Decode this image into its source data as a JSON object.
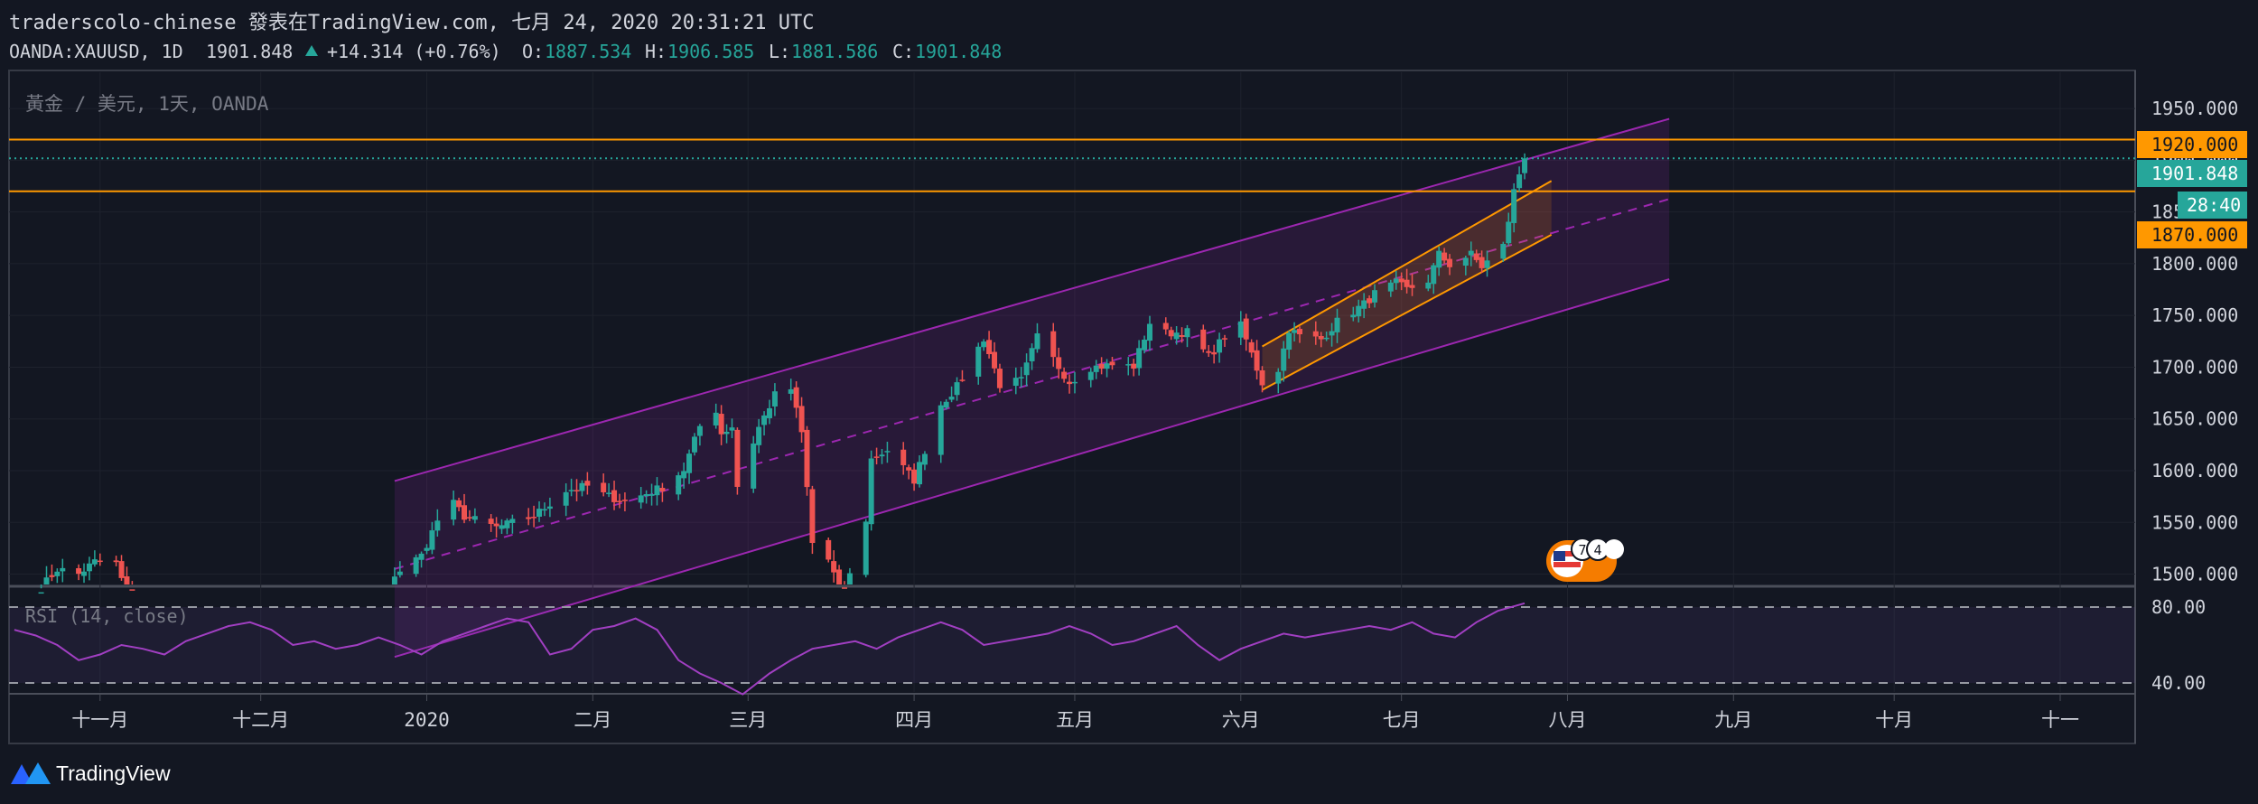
{
  "header": {
    "title": "traderscolo-chinese 發表在TradingView.com, 七月 24, 2020 20:31:21 UTC",
    "symbol": "OANDA:XAUUSD, 1D",
    "last": "1901.848",
    "change": "+14.314 (+0.76%)",
    "o_label": "O:",
    "o": "1887.534",
    "h_label": "H:",
    "h": "1906.585",
    "l_label": "L:",
    "l": "1881.586",
    "c_label": "C:",
    "c": "1901.848"
  },
  "pane_label": "黃金 / 美元, 1天, OANDA",
  "rsi_label": "RSI (14, close)",
  "price_tags": {
    "upper_level": "1920.000",
    "last_price": "1901.848",
    "countdown": "28:40",
    "lower_level": "1870.000"
  },
  "price_axis_ticks": [
    "1950.000",
    "1900.000",
    "1850.000",
    "1800.000",
    "1750.000",
    "1700.000",
    "1650.000",
    "1600.000",
    "1550.000",
    "1500.000"
  ],
  "rsi_axis_ticks": [
    "80.00",
    "40.00"
  ],
  "time_axis_ticks": [
    "十一月",
    "十二月",
    "2020",
    "二月",
    "三月",
    "四月",
    "五月",
    "六月",
    "七月",
    "八月",
    "九月",
    "十月",
    "十一"
  ],
  "event_badge": {
    "count": "7",
    "count2": "4"
  },
  "footer": {
    "brand": "TradingView"
  },
  "colors": {
    "background": "#131722",
    "up": "#26a69a",
    "down": "#ef5350",
    "channel": "#9c27b0",
    "level": "#ff9800",
    "rsi_line": "#a13fc2",
    "text": "#d1d4dc",
    "muted": "#787b86"
  },
  "chart_data": {
    "type": "candlestick",
    "symbol": "OANDA:XAUUSD",
    "interval": "1D",
    "ohlc_last": {
      "open": 1887.534,
      "high": 1906.585,
      "low": 1881.586,
      "close": 1901.848
    },
    "y_range": [
      1490,
      1985
    ],
    "x_range": [
      "2019-10-15",
      "2020-11-15"
    ],
    "horizontal_levels": [
      1920,
      1870
    ],
    "closes": [
      [
        "2019-10-21",
        1487
      ],
      [
        "2019-10-24",
        1505
      ],
      [
        "2019-10-28",
        1500
      ],
      [
        "2019-10-31",
        1512
      ],
      [
        "2019-11-04",
        1510
      ],
      [
        "2019-11-07",
        1465
      ],
      [
        "2019-12-26",
        1500
      ],
      [
        "2019-12-31",
        1518
      ],
      [
        "2020-01-03",
        1552
      ],
      [
        "2020-01-06",
        1568
      ],
      [
        "2020-01-08",
        1556
      ],
      [
        "2020-01-14",
        1545
      ],
      [
        "2020-01-21",
        1556
      ],
      [
        "2020-01-27",
        1581
      ],
      [
        "2020-01-31",
        1585
      ],
      [
        "2020-02-03",
        1577
      ],
      [
        "2020-02-07",
        1570
      ],
      [
        "2020-02-14",
        1584
      ],
      [
        "2020-02-18",
        1601
      ],
      [
        "2020-02-21",
        1643
      ],
      [
        "2020-02-24",
        1659
      ],
      [
        "2020-02-25",
        1636
      ],
      [
        "2020-02-27",
        1643
      ],
      [
        "2020-02-28",
        1585
      ],
      [
        "2020-03-03",
        1642
      ],
      [
        "2020-03-06",
        1673
      ],
      [
        "2020-03-09",
        1679
      ],
      [
        "2020-03-11",
        1636
      ],
      [
        "2020-03-13",
        1530
      ],
      [
        "2020-03-16",
        1514
      ],
      [
        "2020-03-19",
        1472
      ],
      [
        "2020-03-20",
        1499
      ],
      [
        "2020-03-23",
        1553
      ],
      [
        "2020-03-24",
        1611
      ],
      [
        "2020-03-27",
        1620
      ],
      [
        "2020-04-01",
        1591
      ],
      [
        "2020-04-03",
        1620
      ],
      [
        "2020-04-06",
        1664
      ],
      [
        "2020-04-09",
        1681
      ],
      [
        "2020-04-14",
        1728
      ],
      [
        "2020-04-17",
        1683
      ],
      [
        "2020-04-21",
        1687
      ],
      [
        "2020-04-24",
        1729
      ],
      [
        "2020-04-30",
        1686
      ],
      [
        "2020-05-04",
        1700
      ],
      [
        "2020-05-08",
        1702
      ],
      [
        "2020-05-12",
        1701
      ],
      [
        "2020-05-15",
        1743
      ],
      [
        "2020-05-18",
        1733
      ],
      [
        "2020-05-22",
        1734
      ],
      [
        "2020-05-26",
        1710
      ],
      [
        "2020-05-29",
        1730
      ],
      [
        "2020-06-01",
        1740
      ],
      [
        "2020-06-05",
        1685
      ],
      [
        "2020-06-08",
        1698
      ],
      [
        "2020-06-10",
        1737
      ],
      [
        "2020-06-12",
        1730
      ],
      [
        "2020-06-16",
        1727
      ],
      [
        "2020-06-19",
        1744
      ],
      [
        "2020-06-22",
        1754
      ],
      [
        "2020-06-24",
        1761
      ],
      [
        "2020-06-26",
        1771
      ],
      [
        "2020-06-30",
        1781
      ],
      [
        "2020-07-02",
        1775
      ],
      [
        "2020-07-06",
        1784
      ],
      [
        "2020-07-08",
        1809
      ],
      [
        "2020-07-10",
        1799
      ],
      [
        "2020-07-14",
        1809
      ],
      [
        "2020-07-16",
        1797
      ],
      [
        "2020-07-20",
        1817
      ],
      [
        "2020-07-21",
        1842
      ],
      [
        "2020-07-22",
        1870
      ],
      [
        "2020-07-23",
        1887
      ],
      [
        "2020-07-24",
        1901.848
      ]
    ],
    "rsi": {
      "length": 14,
      "levels": [
        80,
        40
      ],
      "values": [
        68,
        65,
        60,
        52,
        55,
        60,
        58,
        55,
        62,
        66,
        70,
        72,
        68,
        60,
        62,
        58,
        60,
        64,
        60,
        55,
        62,
        66,
        70,
        74,
        72,
        55,
        58,
        68,
        70,
        74,
        68,
        52,
        45,
        40,
        34,
        45,
        52,
        58,
        60,
        62,
        58,
        64,
        68,
        72,
        68,
        60,
        62,
        64,
        66,
        70,
        66,
        60,
        62,
        66,
        70,
        60,
        52,
        58,
        62,
        66,
        64,
        66,
        68,
        70,
        68,
        72,
        66,
        64,
        72,
        78,
        82
      ]
    }
  }
}
